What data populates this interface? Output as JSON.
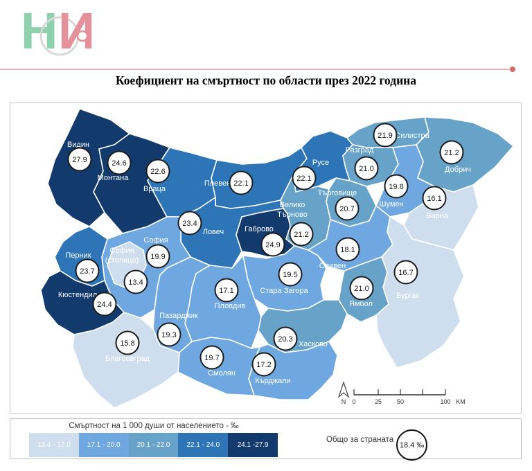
{
  "logo": {
    "letter1": "Н",
    "letter2": "С",
    "letter3": "И",
    "green": "#8fd0ad",
    "pink": "#e4919b",
    "circle_gray": "#d8d8d8"
  },
  "title": "Коефициент на смъртност по области през 2022 година",
  "accent_line_color": "#f2b6ba",
  "legend": {
    "title": "Смъртност на 1 000 души от населението - ‰"
  },
  "total": {
    "label": "Общо за страната",
    "value": "18.4 ‰"
  },
  "scalebar": {
    "ticks": [
      "0",
      "25",
      "50",
      "100"
    ],
    "unit": "KM",
    "north": "N"
  },
  "chart_data": {
    "type": "heatmap",
    "subtype": "choropleth-map",
    "title": "Коефициент на смъртност по области през 2022 година",
    "unit": "смъртност на 1 000 души от населението, ‰",
    "national_total": 18.4,
    "legend_position": "bottom",
    "classes": [
      {
        "range": "13.4 - 17.0",
        "color": "#cfdeef"
      },
      {
        "range": "17.1 - 20.0",
        "color": "#6fa8e0"
      },
      {
        "range": "20.1 - 22.0",
        "color": "#67a2c9"
      },
      {
        "range": "22.1 - 24.0",
        "color": "#2e75b8"
      },
      {
        "range": "24.1 -27.9",
        "color": "#123a6d"
      }
    ],
    "regions": [
      {
        "id": "vidin",
        "name": "Видин",
        "value": 27.9,
        "class": 4
      },
      {
        "id": "montana",
        "name": "Монтана",
        "value": 24.6,
        "class": 4
      },
      {
        "id": "vratsa",
        "name": "Враца",
        "value": 22.6,
        "class": 3
      },
      {
        "id": "pleven",
        "name": "Плевен",
        "value": 22.1,
        "class": 3
      },
      {
        "id": "ruse",
        "name": "Русе",
        "value": 22.1,
        "class": 3
      },
      {
        "id": "silistra",
        "name": "Силистра",
        "value": 21.9,
        "class": 2
      },
      {
        "id": "razgrad",
        "name": "Разград",
        "value": 21.0,
        "class": 2
      },
      {
        "id": "dobrich",
        "name": "Добрич",
        "value": 21.2,
        "class": 2
      },
      {
        "id": "shumen",
        "name": "Шумен",
        "value": 19.8,
        "class": 1
      },
      {
        "id": "varna",
        "name": "Варна",
        "value": 16.1,
        "class": 0
      },
      {
        "id": "targovishte",
        "name": "Търговище",
        "value": 20.7,
        "class": 2
      },
      {
        "id": "veliko_tarnovo",
        "name": "Велико Търново",
        "value": 21.2,
        "class": 2,
        "two_line": true
      },
      {
        "id": "lovech",
        "name": "Ловеч",
        "value": 23.4,
        "class": 3
      },
      {
        "id": "gabrovo",
        "name": "Габрово",
        "value": 24.9,
        "class": 4
      },
      {
        "id": "sliven",
        "name": "Сливен",
        "value": 18.1,
        "class": 1
      },
      {
        "id": "burgas",
        "name": "Бургас",
        "value": 16.7,
        "class": 0
      },
      {
        "id": "yambol",
        "name": "Ямбол",
        "value": 21.0,
        "class": 2
      },
      {
        "id": "stara_zagora",
        "name": "Стара Загора",
        "value": 19.5,
        "class": 1
      },
      {
        "id": "haskovo",
        "name": "Хасково",
        "value": 20.3,
        "class": 2
      },
      {
        "id": "plovdiv",
        "name": "Пловдив",
        "value": 17.1,
        "class": 1
      },
      {
        "id": "pazardzhik",
        "name": "Пазарджик",
        "value": 19.3,
        "class": 1
      },
      {
        "id": "smolyan",
        "name": "Смолян",
        "value": 19.7,
        "class": 1
      },
      {
        "id": "kardzhali",
        "name": "Кърджали",
        "value": 17.2,
        "class": 1
      },
      {
        "id": "sofia_obl",
        "name": "София",
        "value": 19.9,
        "class": 1
      },
      {
        "id": "sofia_city",
        "name": "София (столица)",
        "value": 13.4,
        "class": 0,
        "two_line": true
      },
      {
        "id": "pernik",
        "name": "Перник",
        "value": 23.7,
        "class": 3
      },
      {
        "id": "kyustendil",
        "name": "Кюстендил",
        "value": 24.4,
        "class": 4
      },
      {
        "id": "blagoevgrad",
        "name": "Благоевград",
        "value": 15.8,
        "class": 0
      }
    ]
  }
}
